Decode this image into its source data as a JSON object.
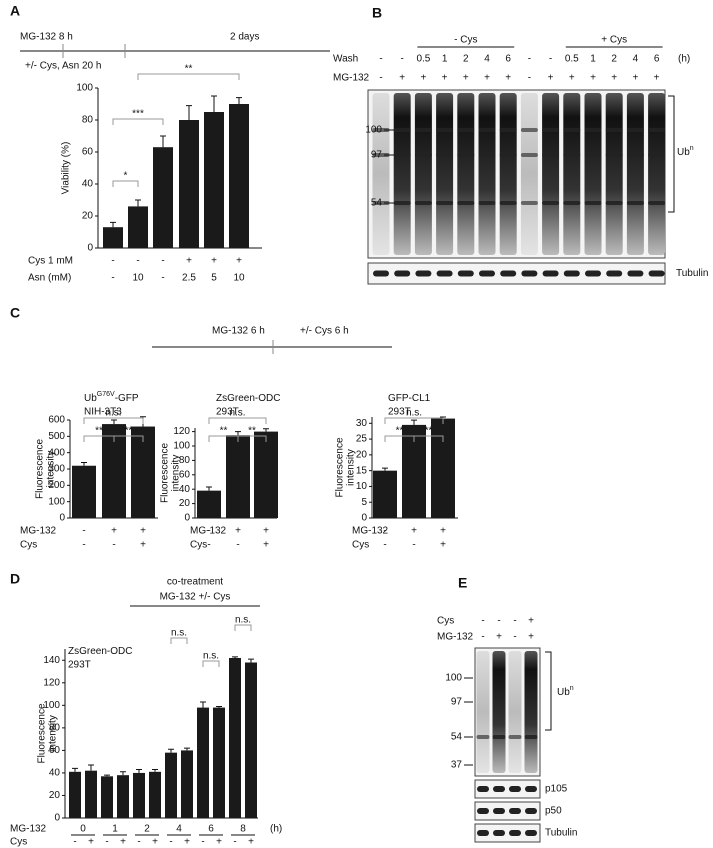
{
  "panels": {
    "A": {
      "label": "A",
      "timeline": [
        "MG-132 8 h",
        "+/- Cys, Asn 20 h",
        "2 days"
      ],
      "chart": {
        "type": "bar",
        "ylabel": [
          "Viability (%)"
        ],
        "values": [
          13,
          26,
          63,
          80,
          85,
          90
        ],
        "errors": [
          3,
          4,
          7,
          9,
          10,
          4
        ],
        "ylim": [
          0,
          100
        ],
        "yticks": [
          0,
          20,
          40,
          60,
          80,
          100
        ],
        "color": "#1a1a1a",
        "sig": [
          "*",
          "***",
          "**"
        ],
        "rows": [
          {
            "name": "Cys  1 mM",
            "labels": [
              "-",
              "-",
              "-",
              "+",
              "+",
              "+"
            ]
          },
          {
            "name": "Asn (mM)",
            "labels": [
              "-",
              "10",
              "-",
              "2.5",
              "5",
              "10"
            ]
          }
        ]
      }
    },
    "B": {
      "label": "B",
      "wash_title": "Wash",
      "unit": "(h)",
      "groups": [
        "- Cys",
        "+ Cys"
      ],
      "wash": [
        "-",
        "-",
        "0.5",
        "1",
        "2",
        "4",
        "6",
        "-",
        "-",
        "0.5",
        "1",
        "2",
        "4",
        "6"
      ],
      "mg_title": "MG-132",
      "mg": [
        "-",
        "+",
        "+",
        "+",
        "+",
        "+",
        "+",
        "-",
        "+",
        "+",
        "+",
        "+",
        "+",
        "+"
      ],
      "markers": [
        "100",
        "97",
        "54"
      ],
      "ub": [
        "Ub",
        "n"
      ],
      "strip": "Tubulin"
    },
    "C": {
      "label": "C",
      "timeline": [
        "MG-132 6 h",
        "+/- Cys 6 h"
      ],
      "charts": [
        {
          "type": "bar",
          "title": [
            "Ub",
            "G76V",
            "-GFP"
          ],
          "subtitle": "NIH-3T3",
          "ylabel": [
            "Fluorescence",
            "intensity"
          ],
          "values": [
            320,
            575,
            560
          ],
          "errors": [
            20,
            25,
            60
          ],
          "ylim": [
            0,
            600
          ],
          "yticks": [
            0,
            100,
            200,
            300,
            400,
            500,
            600
          ],
          "color": "#1a1a1a",
          "sig": [
            "**",
            "**",
            "n.s."
          ],
          "rows": [
            {
              "name": "MG-132",
              "labels": [
                "-",
                "+",
                "+"
              ]
            },
            {
              "name": "Cys",
              "labels": [
                "-",
                "-",
                "+"
              ]
            }
          ]
        },
        {
          "type": "bar",
          "title": [
            "ZsGreen-ODC"
          ],
          "subtitle": "293T",
          "ylabel": [
            "Fluorescence",
            "intensity"
          ],
          "values": [
            38,
            115,
            120
          ],
          "errors": [
            5,
            5,
            4
          ],
          "ylim": [
            0,
            125
          ],
          "yticks": [
            0,
            20,
            40,
            60,
            80,
            100,
            120
          ],
          "color": "#1a1a1a",
          "sig": [
            "**",
            "**",
            "n.s."
          ],
          "rows": [
            {
              "name": "MG-132",
              "labels": [
                "-",
                "+",
                "+"
              ]
            },
            {
              "name": "Cys",
              "labels": [
                "-",
                "-",
                "+"
              ]
            }
          ]
        },
        {
          "type": "bar",
          "title": [
            "GFP-CL1"
          ],
          "subtitle": "293T",
          "ylabel": [
            "Fluorescence",
            "intensity"
          ],
          "values": [
            15,
            29.5,
            31.5
          ],
          "errors": [
            0.8,
            1.5,
            0.5
          ],
          "ylim": [
            0,
            32
          ],
          "yticks": [
            0,
            5,
            10,
            15,
            20,
            25,
            30
          ],
          "color": "#1a1a1a",
          "sig": [
            "**",
            "**",
            "n.s."
          ],
          "rows": [
            {
              "name": "MG-132",
              "labels": [
                "-",
                "+",
                "+"
              ]
            },
            {
              "name": "Cys",
              "labels": [
                "-",
                "-",
                "+"
              ]
            }
          ]
        }
      ]
    },
    "D": {
      "label": "D",
      "header": [
        "co-treatment",
        "MG-132 +/- Cys"
      ],
      "chart": {
        "type": "bar",
        "title": [
          "ZsGreen-ODC"
        ],
        "subtitle": "293T",
        "ylabel": [
          "Fluorescence",
          "intensity"
        ],
        "values": [
          41,
          42,
          37,
          38,
          40,
          41,
          58,
          60,
          98,
          98,
          142,
          138
        ],
        "errors": [
          3,
          5,
          1,
          3,
          3,
          2,
          3,
          2,
          5,
          1,
          1,
          3
        ],
        "ylim": [
          0,
          150
        ],
        "yticks": [
          0,
          20,
          40,
          60,
          80,
          100,
          120,
          140
        ],
        "color": "#1a1a1a",
        "sig": [
          "n.s.",
          "n.s.",
          "n.s."
        ],
        "rows": [
          {
            "name": "MG-132",
            "labels": [
              "0",
              "1",
              "2",
              "4",
              "6",
              "8"
            ],
            "unit": "(h)"
          },
          {
            "name": "Cys",
            "labels": [
              "-",
              "+",
              "-",
              "+",
              "-",
              "+",
              "-",
              "+",
              "-",
              "+",
              "-",
              "+"
            ]
          }
        ]
      }
    },
    "E": {
      "label": "E",
      "rows": [
        {
          "name": "Cys",
          "labels": [
            "-",
            "-",
            "-",
            "+"
          ]
        },
        {
          "name": "MG-132",
          "labels": [
            "-",
            "+",
            "-",
            "+"
          ]
        }
      ],
      "markers": [
        "100",
        "97",
        "54",
        "37"
      ],
      "ub": [
        "Ub",
        "n"
      ],
      "strips": [
        "p105",
        "p50",
        "Tubulin"
      ]
    }
  }
}
